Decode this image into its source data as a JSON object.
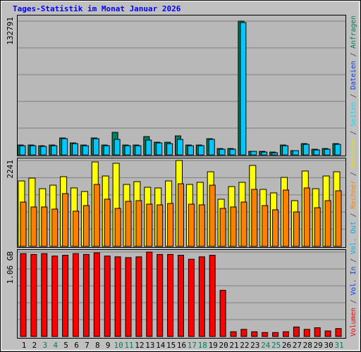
{
  "title": "Tages-Statistik im Monat Januar 2026",
  "side_separator": " / ",
  "side_legend": [
    {
      "text": "Volumen",
      "color": "#ff0000"
    },
    {
      "text": "Vol. In",
      "color": "#0040ff"
    },
    {
      "text": "Vol. Out",
      "color": "#00b0e0"
    },
    {
      "text": "Rechner",
      "color": "#ff8000"
    },
    {
      "text": "Besuche",
      "color": "#e0e000"
    },
    {
      "text": "Seiten",
      "color": "#00e0ff"
    },
    {
      "text": "Dateien",
      "color": "#0040ff"
    },
    {
      "text": "Anfragen",
      "color": "#00805c"
    }
  ],
  "chart_data": [
    {
      "type": "bar",
      "ylim": [
        0,
        132791
      ],
      "yticks": [
        132791
      ],
      "series": [
        {
          "name": "Anfragen",
          "color": "#00805c",
          "values": [
            9790,
            9790,
            9090,
            9790,
            16780,
            11880,
            9790,
            16780,
            9790,
            22370,
            9790,
            9790,
            18170,
            12580,
            12580,
            18870,
            9790,
            9790,
            16080,
            6290,
            6290,
            132791,
            3500,
            3500,
            2800,
            9790,
            4190,
            11180,
            5590,
            6290,
            11180
          ]
        },
        {
          "name": "Dateien",
          "color": "#00c8ff",
          "values": [
            9090,
            9090,
            8390,
            9090,
            16080,
            11180,
            9090,
            16080,
            9090,
            15380,
            9090,
            9090,
            14680,
            11880,
            11180,
            15380,
            9090,
            9090,
            15380,
            5590,
            5590,
            131400,
            3500,
            2800,
            2100,
            9090,
            4190,
            10490,
            4890,
            5590,
            10490
          ]
        }
      ]
    },
    {
      "type": "bar",
      "ylim": [
        0,
        2241
      ],
      "yticks": [
        2241
      ],
      "series": [
        {
          "name": "Besuche",
          "color": "#ffff00",
          "values": [
            1708,
            1782,
            1506,
            1598,
            1819,
            1525,
            1433,
            2204,
            1837,
            2168,
            1617,
            1690,
            1543,
            1525,
            1708,
            2241,
            1617,
            1672,
            1947,
            1231,
            1561,
            1672,
            2113,
            1488,
            1396,
            1800,
            1194,
            1966,
            1506,
            1837,
            1947
          ]
        },
        {
          "name": "Rechner",
          "color": "#ff8000",
          "values": [
            1157,
            1029,
            1029,
            974,
            1378,
            919,
            1065,
            1617,
            1231,
            992,
            1176,
            1194,
            1102,
            1084,
            1121,
            1635,
            1102,
            1084,
            1598,
            992,
            1029,
            1157,
            1488,
            1065,
            955,
            1470,
            900,
            1525,
            1010,
            1194,
            1451
          ]
        }
      ]
    },
    {
      "type": "bar",
      "ylim": [
        0,
        1.06
      ],
      "yticks": [
        {
          "value": 1.06,
          "label": "1.06 GB"
        }
      ],
      "categories": [
        "1",
        "2",
        "3",
        "4",
        "5",
        "6",
        "7",
        "8",
        "9",
        "10",
        "11",
        "12",
        "13",
        "14",
        "15",
        "16",
        "17",
        "18",
        "19",
        "20",
        "21",
        "22",
        "23",
        "24",
        "25",
        "26",
        "27",
        "28",
        "29",
        "30",
        "31"
      ],
      "category_colors": [
        "#000000",
        "#000000",
        "#00805c",
        "#00805c",
        "#000000",
        "#000000",
        "#000000",
        "#000000",
        "#000000",
        "#00805c",
        "#00805c",
        "#000000",
        "#000000",
        "#000000",
        "#000000",
        "#000000",
        "#00805c",
        "#00805c",
        "#000000",
        "#000000",
        "#000000",
        "#000000",
        "#000000",
        "#00805c",
        "#00805c",
        "#000000",
        "#000000",
        "#000000",
        "#000000",
        "#000000",
        "#00805c"
      ],
      "series": [
        {
          "name": "Volumen",
          "color": "#ff0000",
          "values": [
            1.04,
            1.03,
            1.04,
            1.01,
            1.02,
            1.04,
            1.03,
            1.05,
            1.01,
            1.0,
            0.99,
            1.0,
            1.06,
            1.03,
            1.03,
            1.02,
            0.97,
            1.0,
            1.02,
            0.58,
            0.06,
            0.09,
            0.06,
            0.05,
            0.05,
            0.06,
            0.12,
            0.09,
            0.11,
            0.07,
            0.1
          ]
        }
      ]
    }
  ]
}
